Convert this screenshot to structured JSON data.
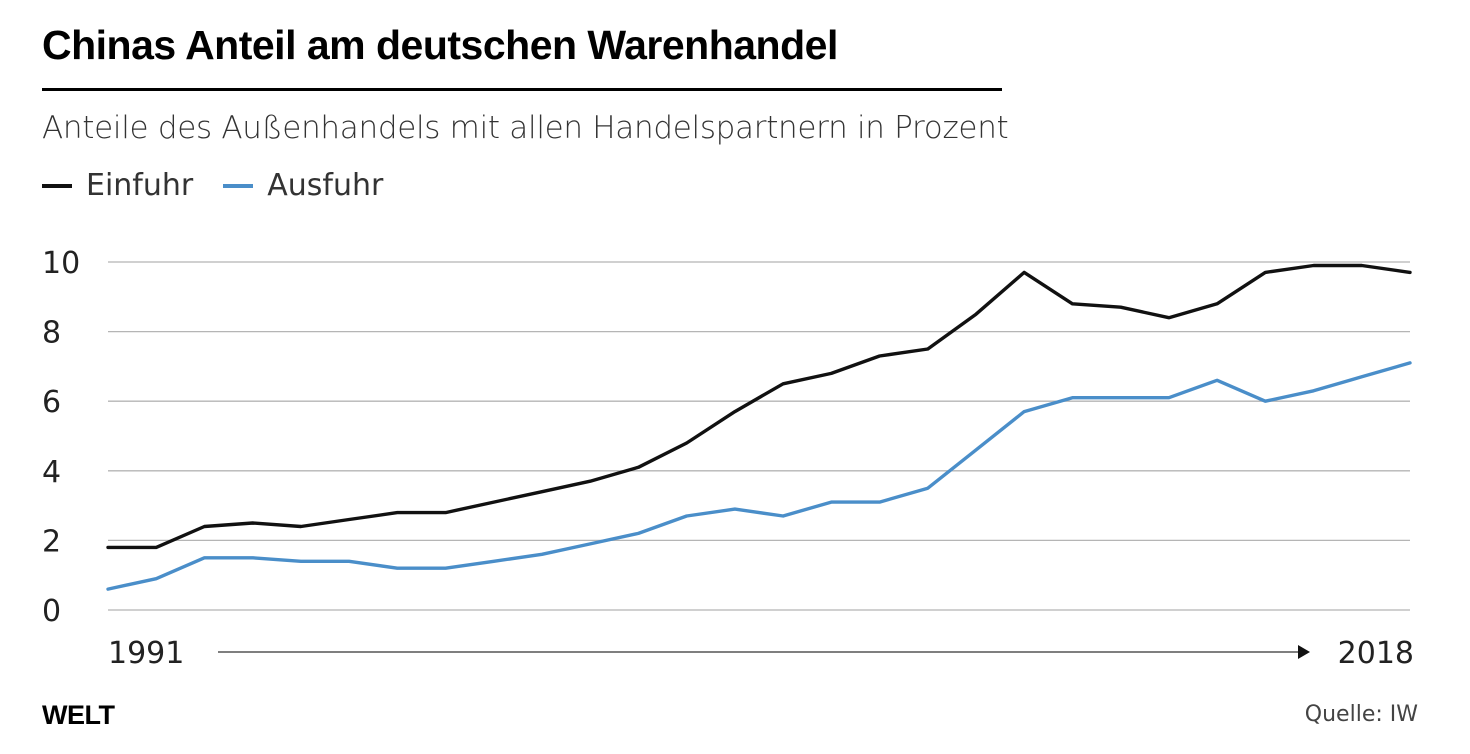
{
  "title": "Chinas Anteil am deutschen Warenhandel",
  "subtitle": "Anteile des Außenhandels mit allen Handelspartnern in Prozent",
  "brand": "WELT",
  "source": "Quelle: IW",
  "colors": {
    "einfuhr": "#111111",
    "ausfuhr": "#4a8ec9",
    "grid": "#b5b5b5"
  },
  "chart_data": {
    "type": "line",
    "title": "Chinas Anteil am deutschen Warenhandel",
    "subtitle": "Anteile des Außenhandels mit allen Handelspartnern in Prozent",
    "x": [
      1991,
      1992,
      1993,
      1994,
      1995,
      1996,
      1997,
      1998,
      1999,
      2000,
      2001,
      2002,
      2003,
      2004,
      2005,
      2006,
      2007,
      2008,
      2009,
      2010,
      2011,
      2012,
      2013,
      2014,
      2015,
      2016,
      2017,
      2018
    ],
    "x_tick_labels": [
      "1991",
      "2018"
    ],
    "y_ticks": [
      0,
      2,
      4,
      6,
      8,
      10
    ],
    "ylim": [
      0,
      10
    ],
    "grid": true,
    "legend_position": "top-left",
    "series": [
      {
        "name": "Einfuhr",
        "color": "#111111",
        "values": [
          1.8,
          1.8,
          2.4,
          2.5,
          2.4,
          2.6,
          2.8,
          2.8,
          3.1,
          3.4,
          3.7,
          4.1,
          4.8,
          5.7,
          6.5,
          6.8,
          7.3,
          7.5,
          8.5,
          9.7,
          8.8,
          8.7,
          8.4,
          8.8,
          9.7,
          9.9,
          9.9,
          9.7
        ]
      },
      {
        "name": "Ausfuhr",
        "color": "#4a8ec9",
        "values": [
          0.6,
          0.9,
          1.5,
          1.5,
          1.4,
          1.4,
          1.2,
          1.2,
          1.4,
          1.6,
          1.9,
          2.2,
          2.7,
          2.9,
          2.7,
          3.1,
          3.1,
          3.5,
          4.6,
          5.7,
          6.1,
          6.1,
          6.1,
          6.6,
          6.0,
          6.3,
          6.7,
          7.1
        ]
      }
    ]
  }
}
